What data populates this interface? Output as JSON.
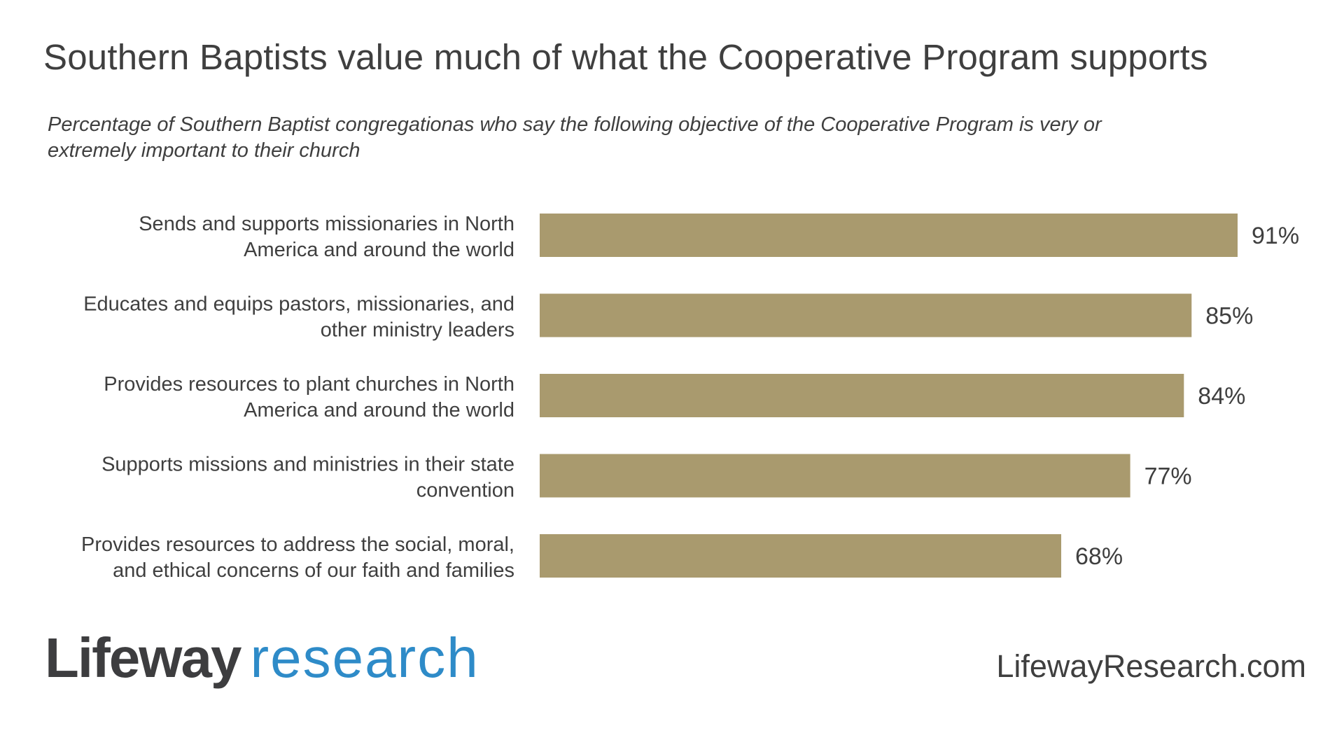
{
  "chart_data": {
    "type": "bar",
    "orientation": "horizontal",
    "title": "Southern Baptists value much of what the Cooperative Program supports",
    "subtitle": "Percentage of Southern Baptist congregationas who say the following objective of the Cooperative Program is very or extremely important to their church",
    "categories": [
      [
        "Sends and supports missionaries in North",
        "America and around the world"
      ],
      [
        "Educates and equips pastors, missionaries, and",
        "other ministry leaders"
      ],
      [
        "Provides resources to plant churches in North",
        "America and around the world"
      ],
      [
        "Supports missions and ministries in their state",
        "convention"
      ],
      [
        "Provides resources to address the social, moral,",
        "and ethical concerns of our faith and families"
      ]
    ],
    "values": [
      91,
      85,
      84,
      77,
      68
    ],
    "value_labels": [
      "91%",
      "85%",
      "84%",
      "77%",
      "68%"
    ],
    "xlim": [
      0,
      100
    ],
    "grid": false,
    "bar_color": "#a99a6e"
  },
  "footer": {
    "logo_part1": "Lifeway",
    "logo_part2": "research",
    "url": "LifewayResearch.com",
    "logo_blue": "#2e8bc8"
  }
}
